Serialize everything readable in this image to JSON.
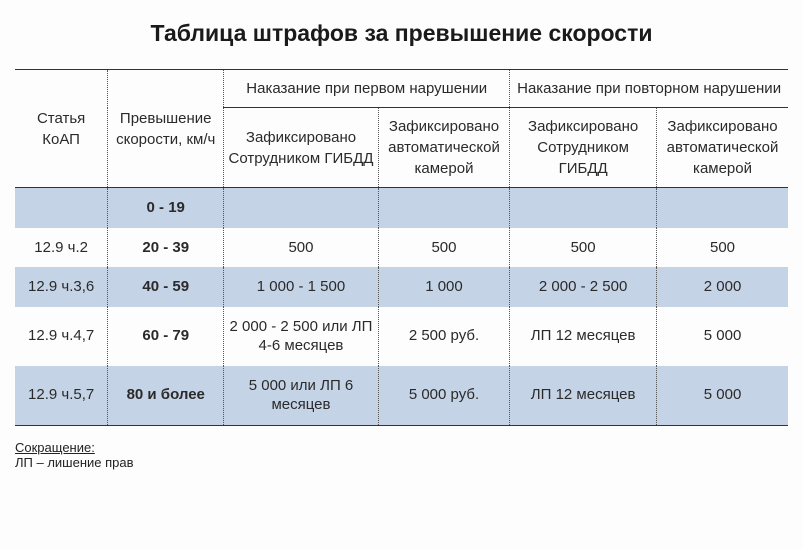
{
  "title": "Таблица штрафов за превышение скорости",
  "table": {
    "type": "table",
    "colors": {
      "stripe_bg": "#c5d3e6",
      "plain_bg": "#fdfdfd",
      "border_solid": "#333333",
      "border_dotted": "#555555",
      "text": "#2a2a2a"
    },
    "col_widths_pct": [
      12,
      15,
      20,
      17,
      19,
      17
    ],
    "header": {
      "row1": {
        "article": "Статья КоАП",
        "excess": "Превышение скорости, км/ч",
        "first_offense": "Наказание при первом нарушении",
        "repeat_offense": "Наказание при повторном нарушении"
      },
      "row2": {
        "first_officer": "Зафиксировано Сотрудником ГИБДД",
        "first_camera": "Зафиксировано автоматической камерой",
        "repeat_officer": "Зафиксировано Сотрудником ГИБДД",
        "repeat_camera": "Зафиксировано автоматической камерой"
      }
    },
    "rows": [
      {
        "stripe": true,
        "article": "",
        "excess": "0 - 19",
        "first_officer": "",
        "first_camera": "",
        "repeat_officer": "",
        "repeat_camera": ""
      },
      {
        "stripe": false,
        "article": "12.9 ч.2",
        "excess": "20 - 39",
        "first_officer": "500",
        "first_camera": "500",
        "repeat_officer": "500",
        "repeat_camera": "500"
      },
      {
        "stripe": true,
        "article": "12.9 ч.3,6",
        "excess": "40 - 59",
        "first_officer": "1 000 - 1 500",
        "first_camera": "1 000",
        "repeat_officer": "2 000 - 2 500",
        "repeat_camera": "2 000"
      },
      {
        "stripe": false,
        "article": "12.9 ч.4,7",
        "excess": "60 - 79",
        "first_officer": "2 000 - 2 500 или ЛП 4-6 месяцев",
        "first_camera": "2 500 руб.",
        "repeat_officer": "ЛП 12 месяцев",
        "repeat_camera": "5 000"
      },
      {
        "stripe": true,
        "article": "12.9 ч.5,7",
        "excess": "80 и более",
        "first_officer": "5 000 или ЛП 6 месяцев",
        "first_camera": "5 000 руб.",
        "repeat_officer": "ЛП 12 месяцев",
        "repeat_camera": "5 000"
      }
    ]
  },
  "footnote": {
    "label": "Сокращение:",
    "text": "ЛП – лишение прав"
  }
}
